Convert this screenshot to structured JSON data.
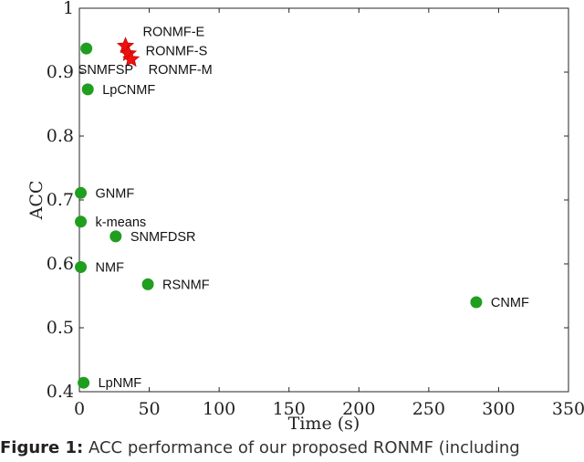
{
  "chart_data": {
    "type": "scatter",
    "xlabel": "Time (s)",
    "ylabel": "ACC",
    "xlim": [
      0,
      350
    ],
    "ylim": [
      0.4,
      1
    ],
    "xticks": [
      0,
      50,
      100,
      150,
      200,
      250,
      300,
      350
    ],
    "yticks": [
      0.4,
      0.5,
      0.6,
      0.7,
      0.8,
      0.9,
      1
    ],
    "grid": false,
    "series": [
      {
        "marker": "circle",
        "color": "#1f9e1f",
        "points": [
          {
            "label": "SNMFSP",
            "x": 5,
            "y": 0.937
          },
          {
            "label": "LpCNMF",
            "x": 6,
            "y": 0.873
          },
          {
            "label": "GNMF",
            "x": 1,
            "y": 0.711
          },
          {
            "label": "k-means",
            "x": 1,
            "y": 0.666
          },
          {
            "label": "SNMFDSR",
            "x": 26,
            "y": 0.643
          },
          {
            "label": "NMF",
            "x": 1,
            "y": 0.595
          },
          {
            "label": "RSNMF",
            "x": 49,
            "y": 0.568
          },
          {
            "label": "CNMF",
            "x": 284,
            "y": 0.54
          },
          {
            "label": "LpNMF",
            "x": 3,
            "y": 0.414
          }
        ]
      },
      {
        "marker": "star",
        "color": "#ee1111",
        "points": [
          {
            "label": "RONMF-E",
            "x": 33,
            "y": 0.941
          },
          {
            "label": "RONMF-S",
            "x": 35,
            "y": 0.929
          },
          {
            "label": "RONMF-M",
            "x": 37,
            "y": 0.92
          }
        ]
      }
    ]
  },
  "caption": {
    "figure_number": "Figure 1:",
    "text": " ACC performance of our proposed RONMF (including"
  }
}
